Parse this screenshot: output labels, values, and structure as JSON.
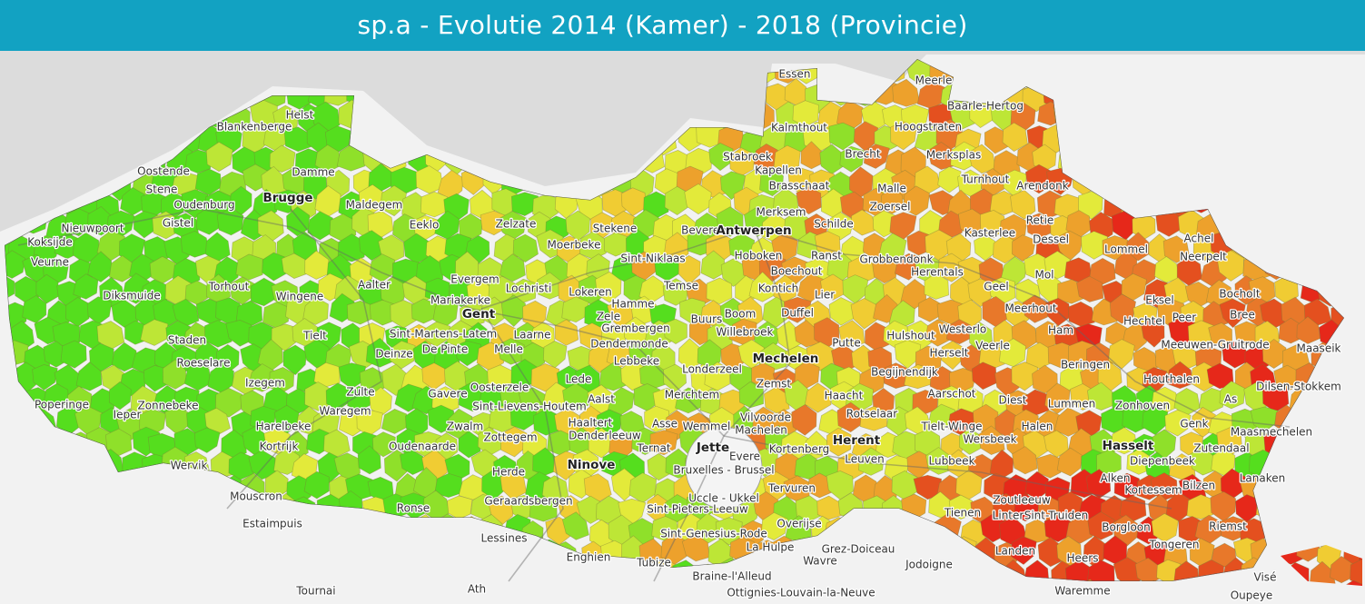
{
  "header": {
    "title": "sp.a - Evolutie 2014 (Kamer) - 2018 (Provincie)"
  },
  "places": [
    "Essen",
    "Meerle",
    "Baarle-Hertog",
    "Kalmthout",
    "Hoogstraten",
    "Helst",
    "Blankenberge",
    "Oostende",
    "Damme",
    "Brecht",
    "Merksplas",
    "Stabroek",
    "Kapellen",
    "Turnhout",
    "Arendonk",
    "Brasschaat",
    "Stene",
    "Brugge",
    "Oudenburg",
    "Maldegem",
    "Malle",
    "Zoersel",
    "Zelzate",
    "Eeklo",
    "Gistel",
    "Nieuwpoort",
    "Stekene",
    "Beveren",
    "Antwerpen",
    "Schilde",
    "Retie",
    "Koksijde",
    "Merksem",
    "Kasterlee",
    "Dessel",
    "Moerbeke",
    "Lommel",
    "Achel",
    "Veurne",
    "Sint-Niklaas",
    "Hoboken",
    "Ranst",
    "Grobbendonk",
    "Herentals",
    "Neerpelt",
    "Torhout",
    "Diksmuide",
    "Evergem",
    "Aalter",
    "Boechout",
    "Mol",
    "Wingene",
    "Lochristi",
    "Lokeren",
    "Temse",
    "Kontich",
    "Bocholt",
    "Mariakerke",
    "Hamme",
    "Lier",
    "Geel",
    "Eksel",
    "Gent",
    "Zele",
    "Meerhout",
    "Boom",
    "Duffel",
    "Bree",
    "Hechtel",
    "Peer",
    "Westerlo",
    "Staden",
    "Tielt",
    "Sint-Martens-Latem",
    "Grembergen",
    "Buurs",
    "Willebroek",
    "Ham",
    "Dendermonde",
    "Laarne",
    "Putte",
    "Hulshout",
    "Herselt",
    "Veerle",
    "Meeuwen-Gruitrode",
    "Maaseik",
    "Roeselare",
    "Deinze",
    "De Pinte",
    "Melle",
    "Lebbeke",
    "Beringen",
    "Mechelen",
    "Londerzeel",
    "Begijnendijk",
    "Houthalen",
    "Izegem",
    "Zulte",
    "Oosterzele",
    "Lede",
    "Zemst",
    "Haacht",
    "Aarschot",
    "Dilsen-Stokkem",
    "Poperinge",
    "Zonnebeke",
    "Gavere",
    "Sint-Lievens-Houtem",
    "Aalst",
    "Merchtem",
    "Diest",
    "Lummen",
    "Zonhoven",
    "Ieper",
    "Waregem",
    "Vilvoorde",
    "Rotselaar",
    "Tielt-Winge",
    "As",
    "Genk",
    "Harelbeke",
    "Zwalm",
    "Haaltert",
    "Denderleeuw",
    "Asse",
    "Wemmel",
    "Machelen",
    "Halen",
    "Maasmechelen",
    "Zottegem",
    "Wersbeek",
    "Herent",
    "Oudenaarde",
    "Kortrijk",
    "Jette",
    "Ternat",
    "Kortenberg",
    "Hasselt",
    "Zutendaal",
    "Evere",
    "Leuven",
    "Lubbeek",
    "Diepenbeek",
    "Wervik",
    "Ninove",
    "Bruxelles - Brussel",
    "Herde",
    "Lanaken",
    "Alken",
    "Mouscron",
    "Geraardsbergen",
    "Uccle - Ukkel",
    "Tervuren",
    "Kortessem",
    "Bilzen",
    "Zoutleeuw",
    "Ronse",
    "Sint-Pieters-Leeuw",
    "Overijse",
    "Tienen",
    "Linter",
    "Sint-Truiden",
    "Estaimpuis",
    "Riemst",
    "Borgloon",
    "Lessines",
    "Sint-Genesius-Rode",
    "La Hulpe",
    "Grez-Doiceau",
    "Tongeren",
    "Landen",
    "Enghien",
    "Heers",
    "Tubize",
    "Wavre",
    "Jodoigne",
    "Braine-l'Alleud",
    "Visé",
    "Tournai",
    "Ath",
    "Ottignies-Louvain-la-Neuve",
    "Waremme",
    "Oupeye"
  ]
}
